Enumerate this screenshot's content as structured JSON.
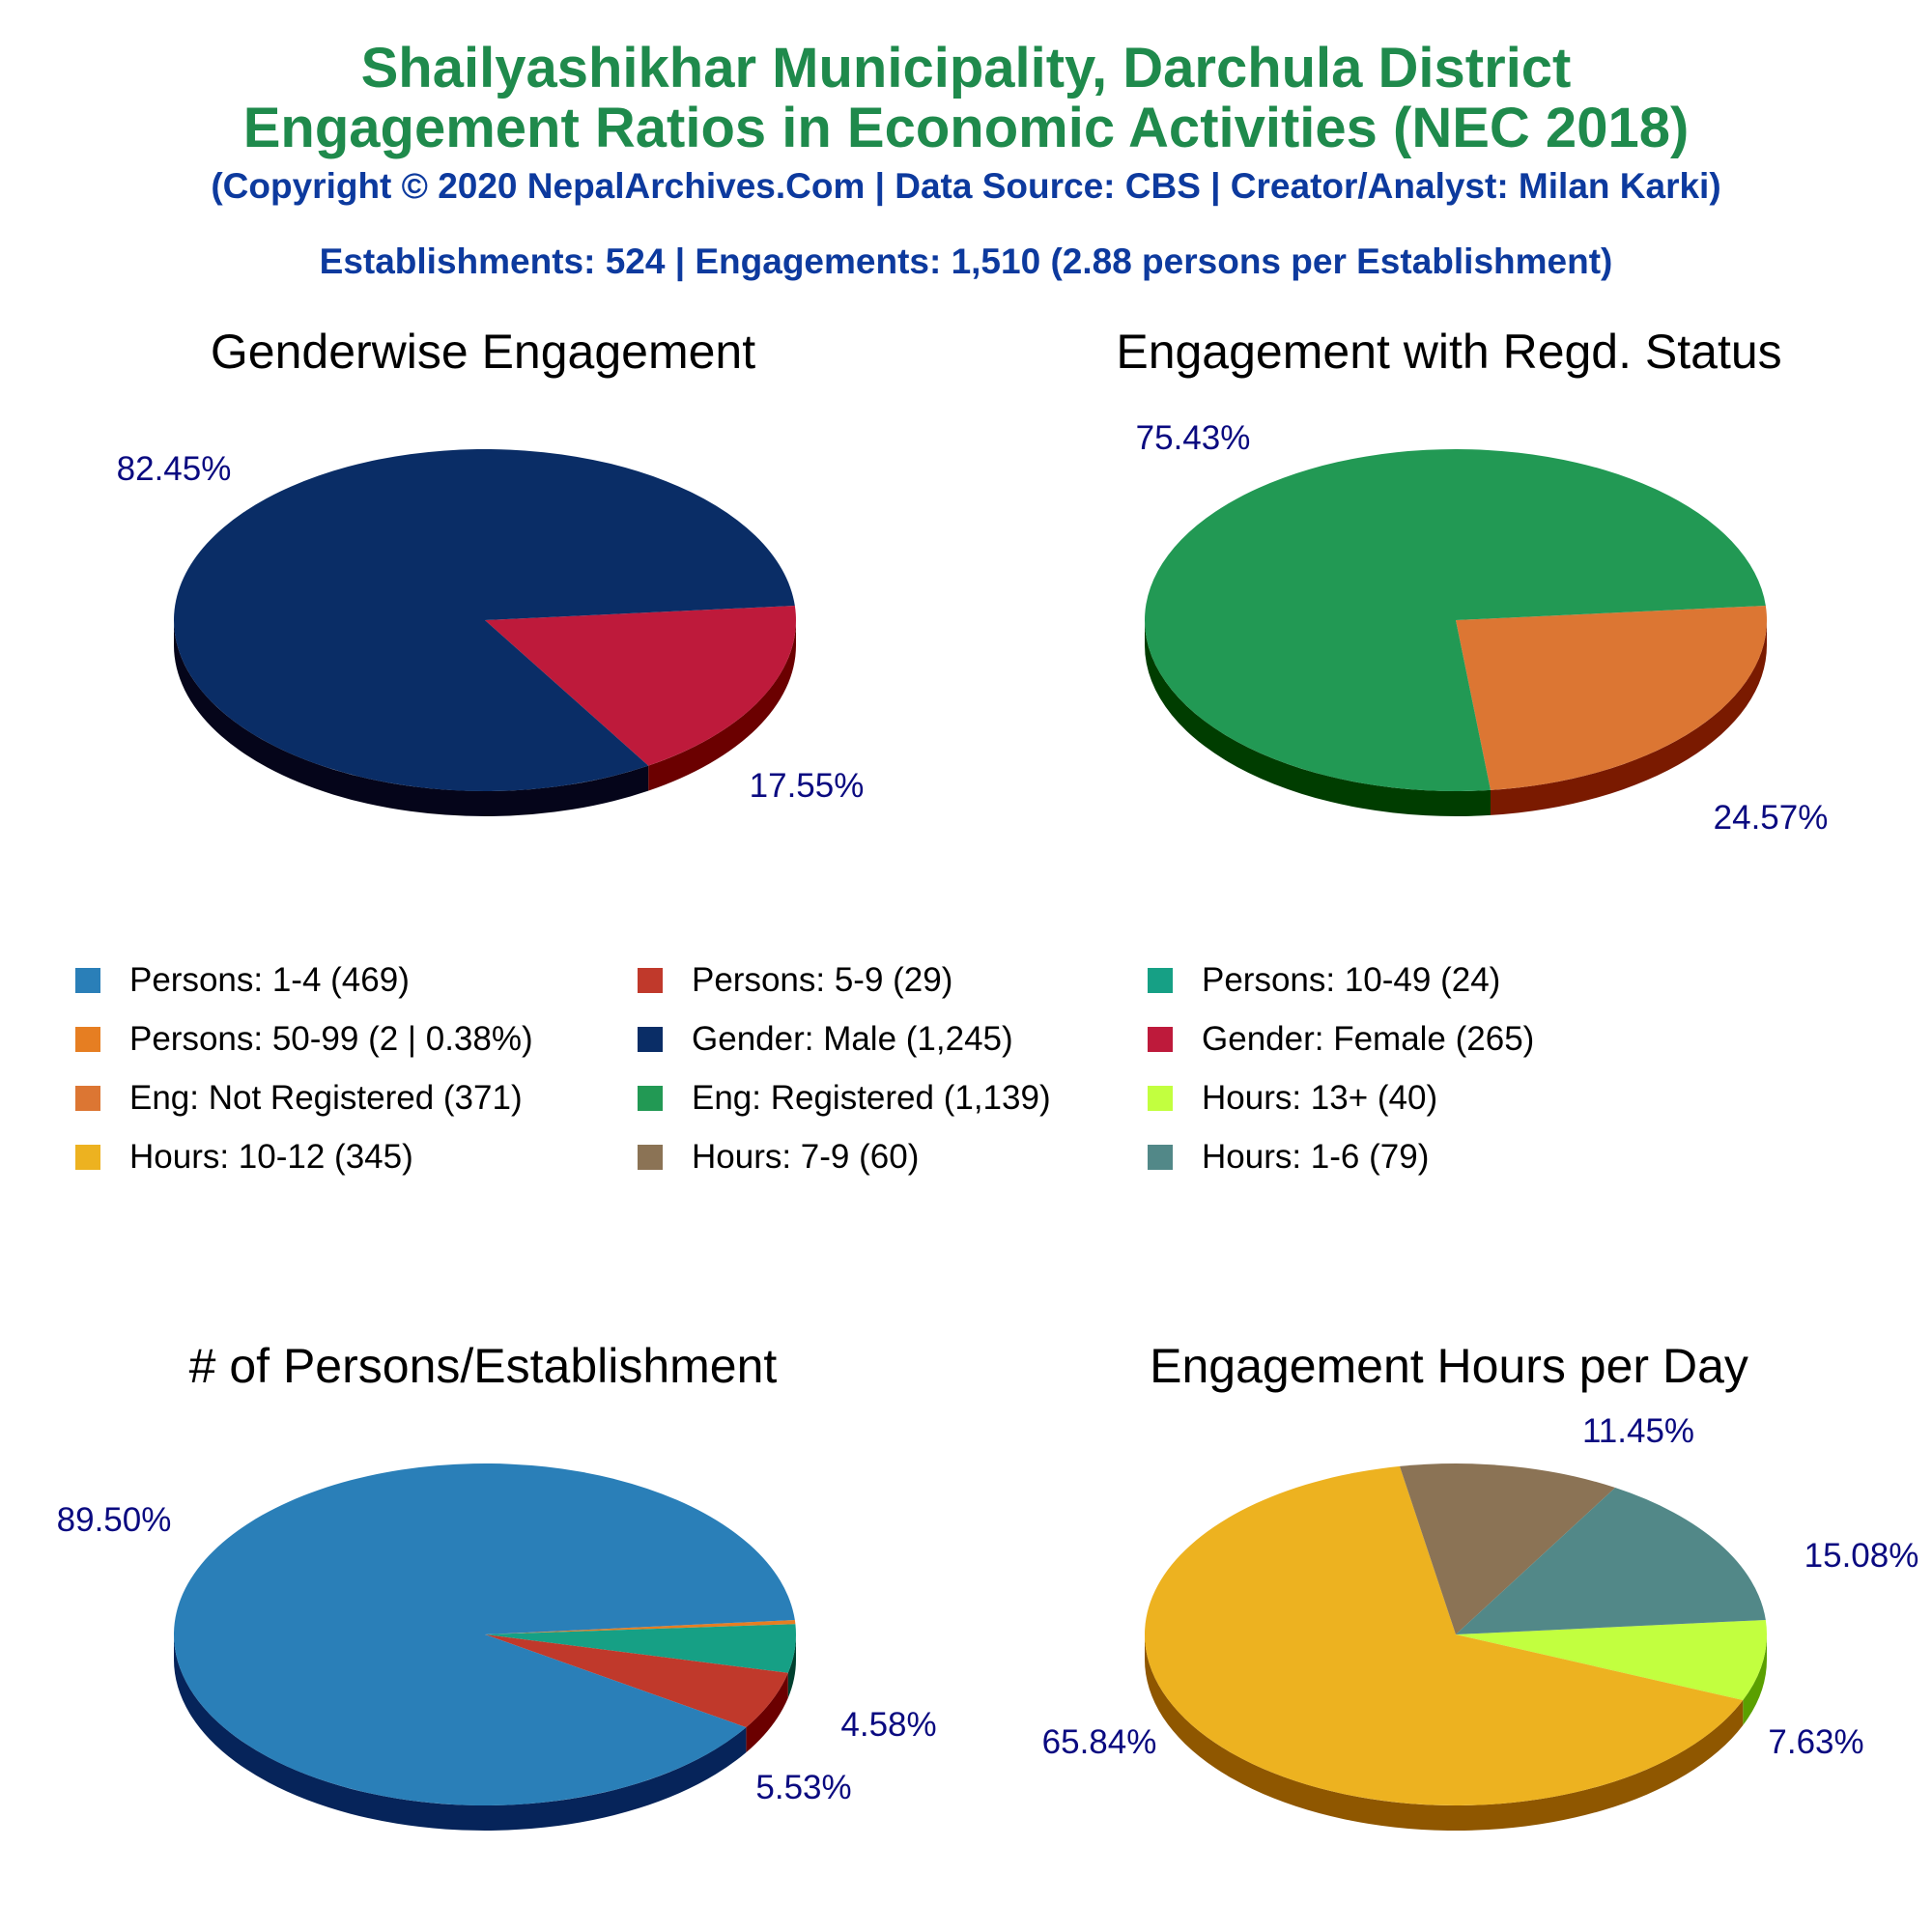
{
  "header": {
    "title_line1": "Shailyashikhar Municipality, Darchula District",
    "title_line2": "Engagement Ratios in Economic Activities (NEC 2018)",
    "copyright": "(Copyright © 2020 NepalArchives.Com | Data Source: CBS | Creator/Analyst: Milan Karki)",
    "summary": "Establishments: 524 | Engagements: 1,510 (2.88 persons per Establishment)"
  },
  "legend": [
    {
      "label": "Persons: 1-4 (469)",
      "color": "#2a7fb8"
    },
    {
      "label": "Persons: 5-9 (29)",
      "color": "#c0392b"
    },
    {
      "label": "Persons: 10-49 (24)",
      "color": "#16a085"
    },
    {
      "label": "Persons: 50-99 (2 | 0.38%)",
      "color": "#e67e22"
    },
    {
      "label": "Gender: Male (1,245)",
      "color": "#0a2d66"
    },
    {
      "label": "Gender: Female (265)",
      "color": "#be1a3b"
    },
    {
      "label": "Eng: Not Registered (371)",
      "color": "#dc7633"
    },
    {
      "label": "Eng: Registered (1,139)",
      "color": "#229954"
    },
    {
      "label": "Hours: 13+ (40)",
      "color": "#c2ff3f"
    },
    {
      "label": "Hours: 10-12 (345)",
      "color": "#edb220"
    },
    {
      "label": "Hours: 7-9 (60)",
      "color": "#8b7355"
    },
    {
      "label": "Hours: 1-6 (79)",
      "color": "#528888"
    }
  ],
  "chart_data": [
    {
      "type": "pie",
      "title": "Genderwise Engagement",
      "start_angle_deg": 0,
      "slices": [
        {
          "name": "Gender: Female",
          "value": 17.55,
          "label": "17.55%",
          "color": "#be1a3b",
          "side": "#6b0000"
        },
        {
          "name": "Gender: Male",
          "value": 82.45,
          "label": "82.45%",
          "color": "#0a2d66",
          "side": "#05051a"
        }
      ]
    },
    {
      "type": "pie",
      "title": "Engagement with Regd. Status",
      "start_angle_deg": 0,
      "slices": [
        {
          "name": "Eng: Not Registered",
          "value": 24.57,
          "label": "24.57%",
          "color": "#dc7633",
          "side": "#7a1a00"
        },
        {
          "name": "Eng: Registered",
          "value": 75.43,
          "label": "75.43%",
          "color": "#229954",
          "side": "#003d00"
        }
      ]
    },
    {
      "type": "pie",
      "title": "# of Persons/Establishment",
      "start_angle_deg": 0,
      "slices": [
        {
          "name": "Persons: 50-99",
          "value": 0.38,
          "label": "",
          "color": "#e67e22",
          "side": "#7a3000"
        },
        {
          "name": "Persons: 10-49",
          "value": 4.58,
          "label": "4.58%",
          "color": "#16a085",
          "side": "#00402f"
        },
        {
          "name": "Persons: 5-9",
          "value": 5.53,
          "label": "5.53%",
          "color": "#c0392b",
          "side": "#6b0000"
        },
        {
          "name": "Persons: 1-4",
          "value": 89.5,
          "label": "89.50%",
          "color": "#2a7fb8",
          "side": "#06245a"
        }
      ]
    },
    {
      "type": "pie",
      "title": "Engagement Hours per Day",
      "start_angle_deg": 0,
      "slices": [
        {
          "name": "Hours: 13+",
          "value": 7.63,
          "label": "7.63%",
          "color": "#c2ff3f",
          "side": "#5aa000"
        },
        {
          "name": "Hours: 10-12",
          "value": 65.84,
          "label": "65.84%",
          "color": "#edb220",
          "side": "#8f5700"
        },
        {
          "name": "Hours: 7-9",
          "value": 11.45,
          "label": "11.45%",
          "color": "#8b7355",
          "side": "#3d2a10"
        },
        {
          "name": "Hours: 1-6",
          "value": 15.08,
          "label": "15.08%",
          "color": "#528888",
          "side": "#1e3a3a"
        }
      ]
    }
  ]
}
